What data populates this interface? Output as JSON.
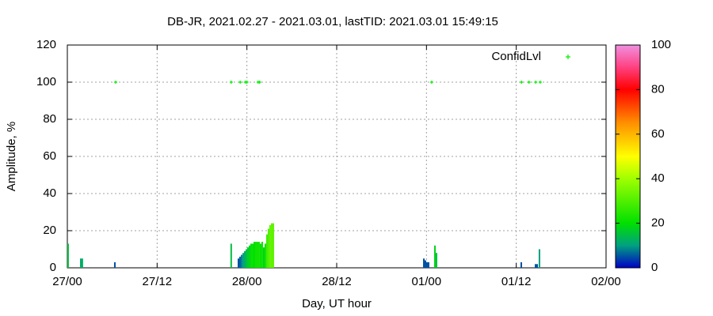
{
  "chart_data": {
    "type": "bar",
    "title": "DB-JR, 2021.02.27 - 2021.03.01, lastTID: 2021.03.01 15:49:15",
    "x_label": "Day, UT hour",
    "y_label": "Amplitude, %",
    "xlim": [
      0,
      72
    ],
    "xticks": [
      {
        "value": 0,
        "label": "27/00"
      },
      {
        "value": 12,
        "label": "27/12"
      },
      {
        "value": 24,
        "label": "28/00"
      },
      {
        "value": 36,
        "label": "28/12"
      },
      {
        "value": 48,
        "label": "01/00"
      },
      {
        "value": 60,
        "label": "01/12"
      },
      {
        "value": 72,
        "label": "02/00"
      }
    ],
    "ylim": [
      0,
      120
    ],
    "yticks": [
      0,
      20,
      40,
      60,
      80,
      100,
      120
    ],
    "grid": true,
    "x": [
      0.1,
      1.8,
      2.0,
      6.35,
      21.9,
      22.87,
      23.08,
      23.29,
      23.51,
      23.72,
      23.93,
      24.14,
      24.35,
      24.56,
      24.78,
      24.99,
      25.2,
      25.41,
      25.62,
      25.84,
      26.05,
      26.26,
      26.47,
      26.68,
      26.89,
      27.1,
      27.32,
      27.53,
      47.65,
      47.86,
      48.07,
      48.28,
      49.13,
      49.34,
      60.67,
      62.58,
      62.79,
      63.1
    ],
    "values": [
      13,
      5,
      5,
      3,
      13,
      5,
      6,
      7,
      8,
      9,
      10,
      11,
      12,
      13,
      13,
      14,
      14,
      14,
      14,
      13,
      14,
      11,
      13,
      18,
      21,
      23,
      24,
      24,
      5,
      4,
      3,
      3,
      12,
      8,
      3,
      2,
      2,
      10
    ],
    "confidence": [
      15,
      12,
      12,
      5,
      15,
      5,
      6,
      8,
      10,
      12,
      15,
      17,
      18,
      20,
      20,
      20,
      22,
      22,
      22,
      20,
      22,
      18,
      22,
      28,
      30,
      32,
      32,
      32,
      5,
      5,
      5,
      5,
      18,
      15,
      5,
      5,
      5,
      10
    ],
    "points": {
      "name": "ConfidLvl",
      "color": "#00ee00",
      "x": [
        6.46,
        21.9,
        23.1,
        23.8,
        24.0,
        25.5,
        25.7,
        48.7,
        60.7,
        61.7,
        62.6,
        63.2
      ],
      "values": [
        100,
        100,
        100,
        100,
        100,
        100,
        100,
        100,
        100,
        100,
        100,
        100
      ]
    },
    "legend": "top-right",
    "colorbar": {
      "lim": [
        0,
        100
      ],
      "ticks": [
        0,
        20,
        40,
        60,
        80,
        100
      ],
      "palette": [
        {
          "value": 0,
          "color": "#0000c8"
        },
        {
          "value": 10,
          "color": "#00a080"
        },
        {
          "value": 20,
          "color": "#00e000"
        },
        {
          "value": 40,
          "color": "#a0ff00"
        },
        {
          "value": 50,
          "color": "#ffff00"
        },
        {
          "value": 65,
          "color": "#ff9000"
        },
        {
          "value": 80,
          "color": "#ff0000"
        },
        {
          "value": 90,
          "color": "#ff4080"
        },
        {
          "value": 100,
          "color": "#f090e0"
        }
      ]
    }
  }
}
